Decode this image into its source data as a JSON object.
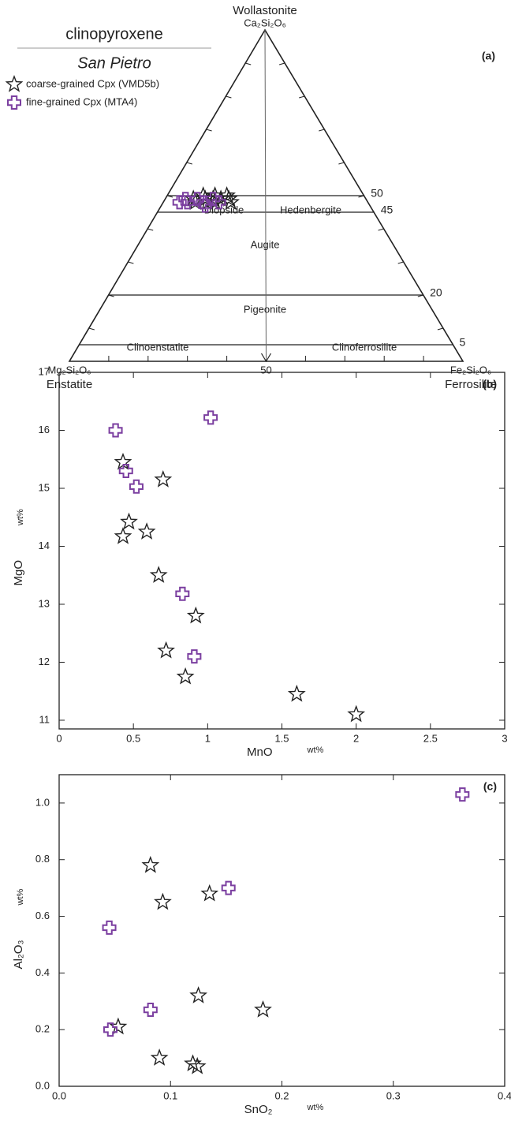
{
  "chart_data": [
    {
      "type": "ternary",
      "title": "clinopyroxene",
      "subtitle": "San Pietro",
      "panel_label": "(a)",
      "apex": {
        "top": [
          "Wollastonite",
          "Ca₂Si₂O₆"
        ],
        "left": [
          "Mg₂Si₂O₆",
          "Enstatite"
        ],
        "right": [
          "Fe₂Si₂O₆",
          "Ferrosilite"
        ]
      },
      "ticks": [
        10,
        20,
        30,
        40,
        50,
        60,
        70,
        80,
        90
      ],
      "boundaries": [
        50,
        45,
        20,
        5
      ],
      "divider": 50,
      "fields": [
        "Diopside",
        "Hedenbergite",
        "Augite",
        "Pigeonite",
        "Clinoenstatite",
        "Clinoferrosilite"
      ],
      "series": [
        {
          "name": "coarse-grained Cpx (VMD5b)",
          "marker": "star",
          "color": "#222222",
          "wo": [
            49,
            48,
            50,
            49,
            48,
            49,
            50,
            48,
            49,
            50,
            49,
            48
          ],
          "en": [
            44,
            44,
            41,
            41,
            41,
            39,
            38,
            39,
            37,
            35,
            35,
            35
          ],
          "fs": [
            7,
            8,
            9,
            10,
            11,
            12,
            12,
            13,
            14,
            15,
            16,
            17
          ]
        },
        {
          "name": "fine-grained Cpx (MTA4)",
          "marker": "cross",
          "color": "#7b3fa0",
          "wo": [
            48,
            49,
            48,
            49,
            48,
            49,
            48,
            47
          ],
          "en": [
            48,
            46,
            46,
            43,
            42,
            39,
            38,
            42
          ],
          "fs": [
            4,
            5,
            6,
            8,
            10,
            12,
            14,
            11
          ]
        }
      ]
    },
    {
      "type": "scatter",
      "panel_label": "(b)",
      "xlabel": "MnO",
      "xunit": "wt%",
      "ylabel": "MgO",
      "yunit": "wt%",
      "xlim": [
        0,
        3
      ],
      "xticks": [
        0,
        0.5,
        1,
        1.5,
        2,
        2.5,
        3
      ],
      "ylim": [
        10.85,
        17
      ],
      "yticks": [
        11,
        12,
        13,
        14,
        15,
        16,
        17
      ],
      "series": [
        {
          "marker": "star",
          "color": "#222222",
          "x": [
            0.43,
            0.7,
            0.47,
            0.43,
            0.59,
            0.67,
            0.92,
            0.72,
            0.85,
            1.6,
            2.0
          ],
          "y": [
            15.45,
            15.15,
            14.42,
            14.17,
            14.25,
            13.5,
            12.8,
            12.2,
            11.75,
            11.45,
            11.1
          ]
        },
        {
          "marker": "cross",
          "color": "#7b3fa0",
          "x": [
            0.38,
            1.02,
            0.45,
            0.52,
            0.83,
            0.91
          ],
          "y": [
            16.0,
            16.22,
            15.3,
            15.03,
            13.18,
            12.1
          ]
        }
      ]
    },
    {
      "type": "scatter",
      "panel_label": "(c)",
      "xlabel": "SnO₂",
      "xunit": "wt%",
      "ylabel": "Al₂O₃",
      "yunit": "wt%",
      "xlim": [
        0,
        0.4
      ],
      "xticks": [
        {
          "value": 0,
          "label": "0.0"
        },
        0.1,
        0.2,
        0.3,
        0.4
      ],
      "ylim": [
        0,
        1.1
      ],
      "yticks": [
        {
          "value": 0,
          "label": "0.0"
        },
        0.2,
        0.4,
        0.6,
        0.8,
        {
          "value": 1,
          "label": "1.0"
        }
      ],
      "series": [
        {
          "marker": "star",
          "color": "#222222",
          "x": [
            0.082,
            0.093,
            0.135,
            0.125,
            0.183,
            0.053,
            0.09,
            0.12,
            0.124
          ],
          "y": [
            0.78,
            0.65,
            0.68,
            0.32,
            0.27,
            0.21,
            0.1,
            0.08,
            0.07
          ]
        },
        {
          "marker": "cross",
          "color": "#7b3fa0",
          "x": [
            0.362,
            0.152,
            0.045,
            0.082,
            0.046
          ],
          "y": [
            1.03,
            0.7,
            0.56,
            0.27,
            0.2
          ]
        }
      ]
    }
  ]
}
